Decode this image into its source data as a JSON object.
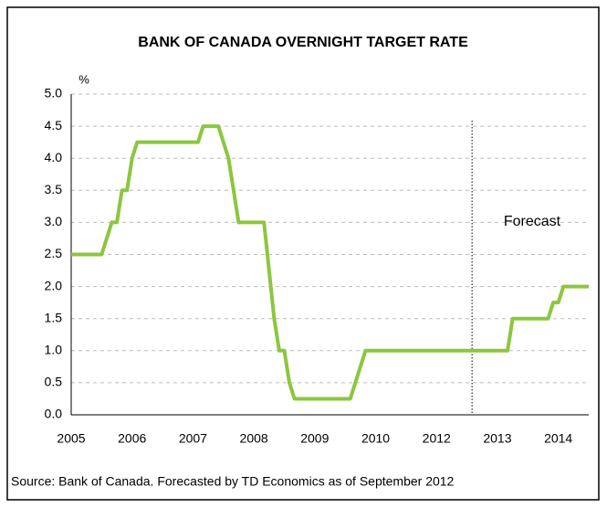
{
  "chart_data": {
    "type": "line",
    "title": "BANK OF CANADA OVERNIGHT TARGET RATE",
    "y_label": "%",
    "source": "Source: Bank of Canada. Forecasted by TD Economics as of September 2012",
    "annotations": [
      {
        "text": "Forecast",
        "x": 79
      }
    ],
    "categories": [
      "2005",
      null,
      null,
      null,
      null,
      null,
      null,
      null,
      null,
      null,
      null,
      null,
      "2006",
      null,
      null,
      null,
      null,
      null,
      null,
      null,
      null,
      null,
      null,
      null,
      "2007",
      null,
      null,
      null,
      null,
      null,
      null,
      null,
      null,
      null,
      null,
      null,
      "2008",
      null,
      null,
      null,
      null,
      null,
      null,
      null,
      null,
      null,
      null,
      null,
      "2009",
      null,
      null,
      null,
      null,
      null,
      null,
      null,
      null,
      null,
      null,
      null,
      "2010",
      null,
      null,
      null,
      null,
      null,
      null,
      null,
      null,
      null,
      null,
      null,
      "2012",
      null,
      null,
      null,
      null,
      null,
      null,
      null,
      null,
      null,
      null,
      null,
      "2013",
      null,
      null,
      null,
      null,
      null,
      null,
      null,
      null,
      null,
      null,
      null,
      "2014",
      null,
      null,
      null,
      null,
      null,
      null
    ],
    "series": [
      {
        "color": "#8cc63f",
        "values": [
          2.5,
          2.5,
          2.5,
          2.5,
          2.5,
          2.5,
          2.5,
          2.75,
          3.0,
          3.0,
          3.5,
          3.5,
          4.0,
          4.25,
          4.25,
          4.25,
          4.25,
          4.25,
          4.25,
          4.25,
          4.25,
          4.25,
          4.25,
          4.25,
          4.25,
          4.25,
          4.5,
          4.5,
          4.5,
          4.5,
          4.25,
          4.0,
          3.5,
          3.0,
          3.0,
          3.0,
          3.0,
          3.0,
          3.0,
          2.25,
          1.5,
          1.0,
          1.0,
          0.5,
          0.25,
          0.25,
          0.25,
          0.25,
          0.25,
          0.25,
          0.25,
          0.25,
          0.25,
          0.25,
          0.25,
          0.25,
          0.5,
          0.75,
          1.0,
          1.0,
          1.0,
          1.0,
          1.0,
          1.0,
          1.0,
          1.0,
          1.0,
          1.0,
          1.0,
          1.0,
          1.0,
          1.0,
          1.0,
          1.0,
          1.0,
          1.0,
          1.0,
          1.0,
          1.0,
          1.0,
          1.0,
          1.0,
          1.0,
          1.0,
          1.0,
          1.0,
          1.0,
          1.5,
          1.5,
          1.5,
          1.5,
          1.5,
          1.5,
          1.5,
          1.5,
          1.75,
          1.75,
          2.0,
          2.0,
          2.0,
          2.0,
          2.0,
          2.0
        ]
      }
    ],
    "ylim": [
      0,
      5
    ],
    "yticks": [
      {
        "value": 0,
        "label": "0.0"
      },
      {
        "value": 0.5,
        "label": "0.5"
      },
      {
        "value": 1,
        "label": "1.0"
      },
      {
        "value": 1.5,
        "label": "1.5"
      },
      {
        "value": 2,
        "label": "2.0"
      },
      {
        "value": 2.5,
        "label": "2.5"
      },
      {
        "value": 3,
        "label": "3.0"
      },
      {
        "value": 3.5,
        "label": "3.5"
      },
      {
        "value": 4,
        "label": "4.0"
      },
      {
        "value": 4.5,
        "label": "4.5"
      },
      {
        "value": 5,
        "label": "5.0"
      }
    ],
    "grid": true
  }
}
